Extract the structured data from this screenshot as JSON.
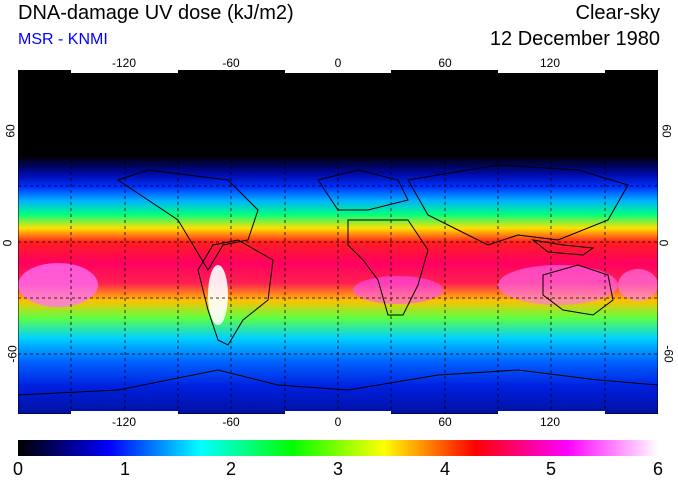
{
  "header": {
    "title": "DNA-damage UV dose (kJ/m2)",
    "subtitle": "MSR - KNMI",
    "condition": "Clear-sky",
    "date": "12 December 1980"
  },
  "map": {
    "lon_ticks": [
      "-120",
      "-60",
      "0",
      "60",
      "120"
    ],
    "lat_ticks_left": [
      "60",
      "0",
      "-60"
    ],
    "lat_ticks_right": [
      "60",
      "0",
      "-60"
    ],
    "lon_range": [
      -180,
      180
    ],
    "lat_range": [
      -90,
      90
    ]
  },
  "colorbar": {
    "labels": [
      "0",
      "1",
      "2",
      "3",
      "4",
      "5",
      "6"
    ],
    "range": [
      0,
      6
    ],
    "colors": [
      "#000000",
      "#0000ff",
      "#00ffff",
      "#00ff00",
      "#ffff00",
      "#ff0000",
      "#ff00ff",
      "#ffffff"
    ]
  }
}
